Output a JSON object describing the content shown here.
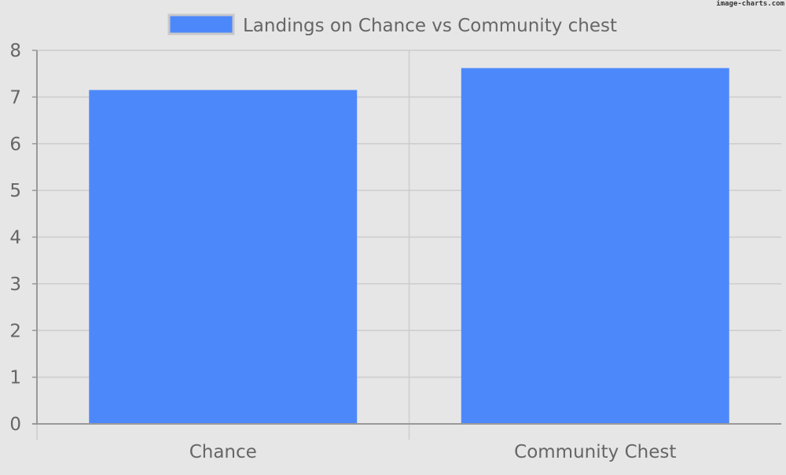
{
  "watermark": "image-charts.com",
  "chart_data": {
    "type": "bar",
    "categories": [
      "Chance",
      "Community Chest"
    ],
    "series": [
      {
        "name": "Landings on Chance vs Community chest",
        "values": [
          7.15,
          7.62
        ]
      }
    ],
    "ylim": [
      0,
      8
    ],
    "yticks": [
      "0",
      "1",
      "2",
      "3",
      "4",
      "5",
      "6",
      "7",
      "8"
    ],
    "grid": true,
    "legend_position": "top-center",
    "colors": {
      "bar": "#4d88fb",
      "background": "#e6e6e6",
      "grid": "#cccccc",
      "axis": "#999999",
      "text": "#666666",
      "legend_border": "#c8c8c8"
    }
  }
}
